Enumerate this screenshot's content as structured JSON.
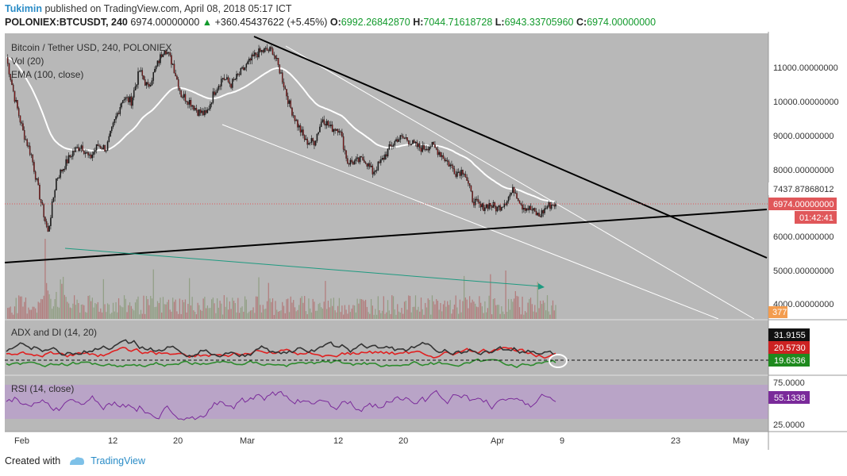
{
  "header": {
    "user": "Tukimin",
    "published_text": "published on TradingView.com, April 08, 2018 05:17 ICT",
    "symbol": "POLONIEX:BTCUSDT, 240",
    "last": "6974.00000000",
    "arrow": "▲",
    "change": "+360.45437622 (+5.45%)",
    "o_label": "O:",
    "o_val": "6992.26842870",
    "h_label": "H:",
    "h_val": "7044.71618728",
    "l_label": "L:",
    "l_val": "6943.33705960",
    "c_label": "C:",
    "c_val": "6974.00000000"
  },
  "legend": {
    "main_title": "Bitcoin / Tether USD, 240, POLONIEX",
    "vol": "Vol (20)",
    "ema": "EMA (100, close)",
    "adx": "ADX and DI (14, 20)",
    "rsi": "RSI (14, close)"
  },
  "price_axis": {
    "ticks": [
      "11000.00000000",
      "10000.00000000",
      "9000.00000000",
      "8000.00000000",
      "6000.00000000",
      "5000.00000000",
      "4000.00000000"
    ],
    "ema_label": "7437.87868012",
    "last_label": "6974.00000000",
    "countdown_label": "01:42:41",
    "volume_label": "377"
  },
  "adx_axis": {
    "labels": [
      "31.9155",
      "20.5730",
      "19.6336"
    ]
  },
  "rsi_axis": {
    "ticks": [
      "75.0000",
      "25.0000"
    ],
    "value_label": "55.1338"
  },
  "time_axis": {
    "labels": [
      "Feb",
      "12",
      "20",
      "Mar",
      "12",
      "20",
      "Apr",
      "9",
      "23",
      "May"
    ]
  },
  "footer": {
    "created_with": "Created with",
    "brand": "TradingView"
  },
  "colors": {
    "panel_bg": "#b8b8b8",
    "candle_up": "#1a1a1a",
    "candle_down": "#8b1a1a",
    "ema": "#ffffff",
    "trendline": "#000000",
    "volume_up": "#8a9a7a",
    "volume_down": "#b07070",
    "adx": "#333333",
    "di_plus": "#2e8b2e",
    "di_minus": "#e02020",
    "rsi": "#7a2a9a",
    "rsi_band": "#b9a4c7",
    "accent": "#2a8cc7",
    "last_price": "#e0575a",
    "volume_label_bg": "#f39c4e",
    "rsi_label_bg": "#7a2a9a",
    "adx_label_bg": "#111111",
    "dim_label_bg": "#cc2222",
    "dip_label_bg": "#1e8a1e"
  },
  "chart_data": {
    "type": "line",
    "title": "Bitcoin / Tether USD, 240, POLONIEX",
    "xlabel": "",
    "ylabel": "",
    "x_categories": [
      "Feb",
      "12",
      "20",
      "Mar",
      "12",
      "20",
      "Apr"
    ],
    "series": [
      {
        "name": "Bitcoin / Tether USD",
        "points": [
          [
            "Feb 1",
            11300
          ],
          [
            "Feb 2",
            10100
          ],
          [
            "Feb 3",
            9100
          ],
          [
            "Feb 4",
            8400
          ],
          [
            "Feb 5",
            7200
          ],
          [
            "Feb 6",
            6100
          ],
          [
            "Feb 7",
            7700
          ],
          [
            "Feb 8",
            8100
          ],
          [
            "Feb 9",
            8500
          ],
          [
            "Feb 10",
            8700
          ],
          [
            "Feb 11",
            8300
          ],
          [
            "Feb 12",
            8700
          ],
          [
            "Feb 13",
            8600
          ],
          [
            "Feb 14",
            9400
          ],
          [
            "Feb 15",
            10100
          ],
          [
            "Feb 16",
            10000
          ],
          [
            "Feb 17",
            10900
          ],
          [
            "Feb 18",
            10400
          ],
          [
            "Feb 19",
            11000
          ],
          [
            "Feb 20",
            11600
          ],
          [
            "Feb 21",
            11100
          ],
          [
            "Feb 22",
            10200
          ],
          [
            "Feb 23",
            10000
          ],
          [
            "Feb 24",
            9700
          ],
          [
            "Feb 25",
            9600
          ],
          [
            "Feb 26",
            10300
          ],
          [
            "Feb 27",
            10700
          ],
          [
            "Feb 28",
            10500
          ],
          [
            "Mar 1",
            10800
          ],
          [
            "Mar 2",
            11100
          ],
          [
            "Mar 3",
            11400
          ],
          [
            "Mar 4",
            11500
          ],
          [
            "Mar 5",
            11500
          ],
          [
            "Mar 6",
            10800
          ],
          [
            "Mar 7",
            9900
          ],
          [
            "Mar 8",
            9300
          ],
          [
            "Mar 9",
            8800
          ],
          [
            "Mar 10",
            8800
          ],
          [
            "Mar 11",
            9500
          ],
          [
            "Mar 12",
            9200
          ],
          [
            "Mar 13",
            9200
          ],
          [
            "Mar 14",
            8200
          ],
          [
            "Mar 15",
            8200
          ],
          [
            "Mar 16",
            8300
          ],
          [
            "Mar 17",
            7900
          ],
          [
            "Mar 18",
            8200
          ],
          [
            "Mar 19",
            8600
          ],
          [
            "Mar 20",
            8900
          ],
          [
            "Mar 21",
            8900
          ],
          [
            "Mar 22",
            8700
          ],
          [
            "Mar 23",
            8600
          ],
          [
            "Mar 24",
            8700
          ],
          [
            "Mar 25",
            8500
          ],
          [
            "Mar 26",
            8200
          ],
          [
            "Mar 27",
            7900
          ],
          [
            "Mar 28",
            7950
          ],
          [
            "Mar 29",
            7100
          ],
          [
            "Mar 30",
            6850
          ],
          [
            "Mar 31",
            6950
          ],
          [
            "Apr 1",
            6820
          ],
          [
            "Apr 2",
            7050
          ],
          [
            "Apr 3",
            7400
          ],
          [
            "Apr 4",
            6900
          ],
          [
            "Apr 5",
            6800
          ],
          [
            "Apr 6",
            6600
          ],
          [
            "Apr 7",
            6900
          ],
          [
            "Apr 8",
            6974
          ]
        ]
      },
      {
        "name": "EMA (100, close)",
        "last": 7437.87868012
      }
    ],
    "volume": {
      "name": "Vol (20)",
      "last": 377
    },
    "adx_di": {
      "name": "ADX and DI (14, 20)",
      "adx": 31.9155,
      "di_minus": 20.573,
      "di_plus": 19.6336,
      "threshold": 20
    },
    "rsi": {
      "name": "RSI (14, close)",
      "value": 55.1338,
      "upper": 75,
      "lower": 25
    },
    "ylim": [
      3600,
      11900
    ]
  }
}
